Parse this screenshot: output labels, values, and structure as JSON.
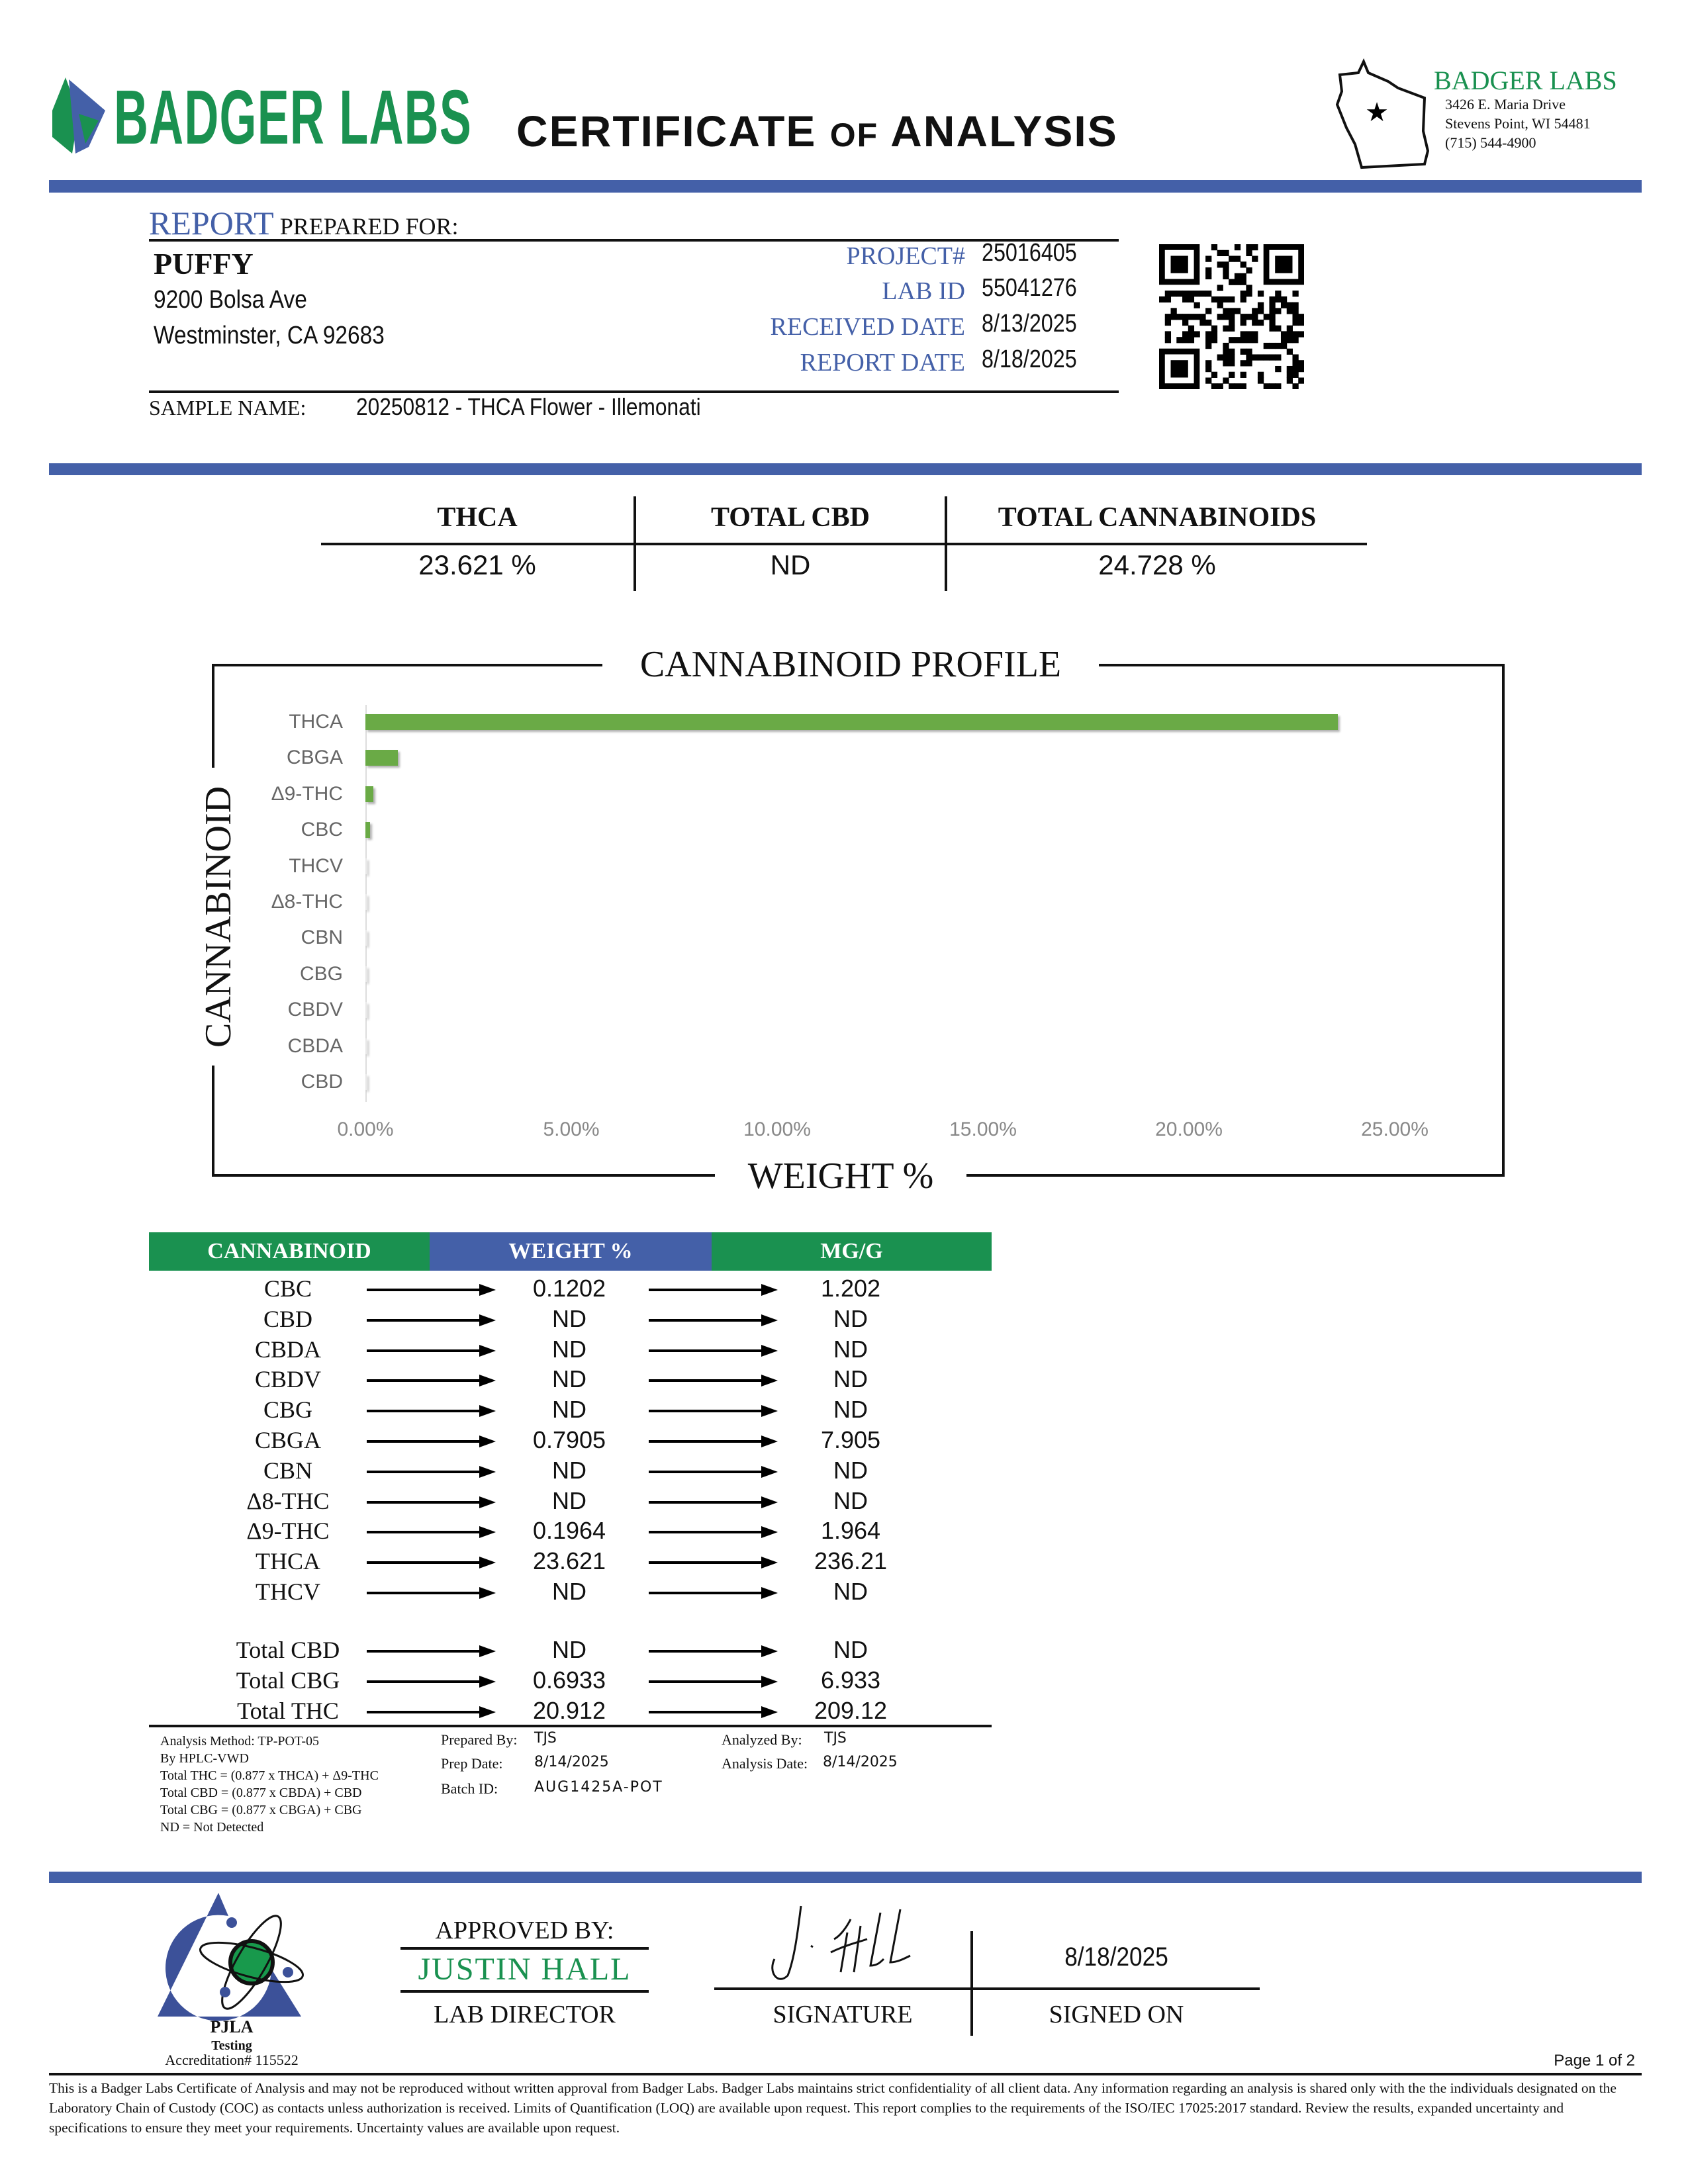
{
  "header": {
    "logo_text": "BADGER LABS",
    "title_main1": "CERTIFICATE",
    "title_of": "OF",
    "title_main2": "ANALYSIS",
    "lab_name": "BADGER LABS",
    "address1": "3426 E. Maria Drive",
    "address2": "Stevens Point, WI 54481",
    "phone": "(715) 544-4900"
  },
  "colors": {
    "blue": "#4460a8",
    "green": "#1a9150",
    "bar_green": "#6aaa46"
  },
  "client": {
    "heading_report": "REPORT",
    "heading_rest": "PREPARED FOR:",
    "name": "PUFFY",
    "address1": "9200 Bolsa Ave",
    "address2": "Westminster, CA 92683"
  },
  "report_info": [
    {
      "label": "PROJECT#",
      "value": "25016405"
    },
    {
      "label": "LAB ID",
      "value": "55041276"
    },
    {
      "label": "RECEIVED DATE",
      "value": "8/13/2025"
    },
    {
      "label": "REPORT DATE",
      "value": "8/18/2025"
    }
  ],
  "sample": {
    "label": "SAMPLE NAME:",
    "value": "20250812 - THCA Flower - Illemonati"
  },
  "summary": [
    {
      "label": "THCA",
      "value": "23.621 %"
    },
    {
      "label": "TOTAL CBD",
      "value": "ND"
    },
    {
      "label": "TOTAL CANNABINOIDS",
      "value": "24.728 %"
    }
  ],
  "chart_data": {
    "type": "bar",
    "orientation": "horizontal",
    "title": "CANNABINOID PROFILE",
    "xlabel": "WEIGHT %",
    "ylabel": "CANNABINOID",
    "categories": [
      "THCA",
      "CBGA",
      "Δ9-THC",
      "CBC",
      "THCV",
      "Δ8-THC",
      "CBN",
      "CBG",
      "CBDV",
      "CBDA",
      "CBD"
    ],
    "values": [
      23.621,
      0.7905,
      0.1964,
      0.1202,
      0,
      0,
      0,
      0,
      0,
      0,
      0
    ],
    "xlim": [
      0,
      25
    ],
    "xticks": [
      "0.00%",
      "5.00%",
      "10.00%",
      "15.00%",
      "20.00%",
      "25.00%"
    ],
    "grid": false
  },
  "table": {
    "headers": [
      "CANNABINOID",
      "WEIGHT %",
      "MG/G"
    ],
    "rows": [
      [
        "CBC",
        "0.1202",
        "1.202"
      ],
      [
        "CBD",
        "ND",
        "ND"
      ],
      [
        "CBDA",
        "ND",
        "ND"
      ],
      [
        "CBDV",
        "ND",
        "ND"
      ],
      [
        "CBG",
        "ND",
        "ND"
      ],
      [
        "CBGA",
        "0.7905",
        "7.905"
      ],
      [
        "CBN",
        "ND",
        "ND"
      ],
      [
        "Δ8-THC",
        "ND",
        "ND"
      ],
      [
        "Δ9-THC",
        "0.1964",
        "1.964"
      ],
      [
        "THCA",
        "23.621",
        "236.21"
      ],
      [
        "THCV",
        "ND",
        "ND"
      ]
    ],
    "totals": [
      [
        "Total CBD",
        "ND",
        "ND"
      ],
      [
        "Total CBG",
        "0.6933",
        "6.933"
      ],
      [
        "Total THC",
        "20.912",
        "209.12"
      ]
    ]
  },
  "notes": [
    "Analysis Method: TP-POT-05",
    "By HPLC-VWD",
    "Total THC = (0.877 x  THCA) + Δ9-THC",
    "Total CBD = (0.877 x  CBDA) + CBD",
    "Total CBG = (0.877 x  CBGA) + CBG",
    "ND = Not Detected"
  ],
  "prep": {
    "prepared_by_label": "Prepared By:",
    "prepared_by": "TJS",
    "prep_date_label": "Prep Date:",
    "prep_date": "8/14/2025",
    "batch_label": "Batch ID:",
    "batch": "AUG1425A-POT",
    "analyzed_by_label": "Analyzed By:",
    "analyzed_by": "TJS",
    "analysis_date_label": "Analysis Date:",
    "analysis_date": "8/14/2025"
  },
  "footer": {
    "pjla": "PJLA",
    "testing": "Testing",
    "accreditation": "Accreditation# 115522",
    "approved_by": "APPROVED BY:",
    "approver": "JUSTIN HALL",
    "approver_title": "LAB DIRECTOR",
    "signature_label": "SIGNATURE",
    "signed_on_label": "SIGNED ON",
    "signed_date": "8/18/2025",
    "page": "Page 1 of 2",
    "disclaimer": "This is a Badger Labs Certificate of Analysis and may not be reproduced without written approval from Badger Labs. Badger Labs maintains strict confidentiality of all client data. Any information regarding an analysis is shared only with the the individuals designated on the Laboratory Chain of Custody (COC) as contacts unless authorization is received. Limits of Quantification (LOQ) are available upon request. This report complies to the requirements of the ISO/IEC 17025:2017 standard. Review the results, expanded uncertainty and specifications to ensure they meet your requirements. Uncertainty values are available upon request."
  }
}
